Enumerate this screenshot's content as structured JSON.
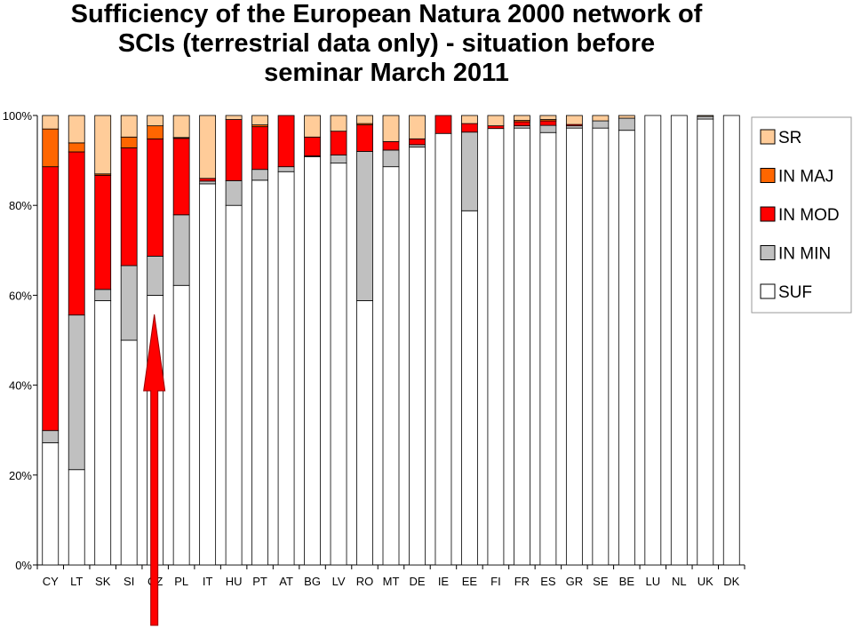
{
  "title_lines": [
    "Sufficiency of the European Natura 2000 network of",
    "SCIs  (terrestrial data only) - situation before",
    "seminar March 2011"
  ],
  "colors": {
    "SUF": "#ffffff",
    "IN MIN": "#c0c0c0",
    "IN MOD": "#ff0000",
    "IN MAJ": "#ff6600",
    "SR": "#ffcc99",
    "arrow": "#ff0000",
    "arrow_stroke": "#990000"
  },
  "chart_data": {
    "type": "bar",
    "stacked": true,
    "percent": true,
    "ylim": [
      0,
      100
    ],
    "yticks": [
      "0%",
      "20%",
      "40%",
      "60%",
      "80%",
      "100%"
    ],
    "ytick_values": [
      0,
      20,
      40,
      60,
      80,
      100
    ],
    "grid": false,
    "legend_position": "right",
    "legend_order": [
      "SR",
      "IN MAJ",
      "IN MOD",
      "IN MIN",
      "SUF"
    ],
    "categories": [
      "CY",
      "LT",
      "SK",
      "SI",
      "CZ",
      "PL",
      "IT",
      "HU",
      "PT",
      "AT",
      "BG",
      "LV",
      "RO",
      "MT",
      "DE",
      "IE",
      "EE",
      "FI",
      "FR",
      "ES",
      "GR",
      "SE",
      "BE",
      "LU",
      "NL",
      "UK",
      "DK"
    ],
    "series": [
      {
        "name": "SUF",
        "values": [
          27.2,
          21.2,
          58.8,
          50.0,
          60.0,
          62.2,
          84.8,
          80.0,
          85.6,
          87.5,
          90.8,
          89.4,
          58.8,
          88.6,
          93.0,
          96.0,
          78.8,
          97.1,
          97.2,
          96.2,
          97.2,
          97.2,
          96.7,
          100.0,
          100.0,
          99.2,
          100.0
        ]
      },
      {
        "name": "IN MIN",
        "values": [
          2.7,
          34.4,
          2.5,
          16.6,
          8.7,
          15.7,
          0.6,
          5.5,
          2.4,
          1.1,
          0.2,
          1.8,
          33.2,
          3.7,
          0.5,
          0.0,
          17.5,
          0.0,
          0.5,
          1.6,
          0.5,
          1.6,
          2.7,
          0.0,
          0.0,
          0.6,
          0.0
        ]
      },
      {
        "name": "IN MOD",
        "values": [
          58.7,
          36.3,
          25.4,
          26.2,
          26.1,
          17.0,
          0.6,
          13.6,
          9.5,
          11.4,
          4.2,
          5.3,
          5.9,
          1.9,
          1.3,
          4.0,
          1.9,
          0.6,
          0.9,
          1.0,
          0.3,
          0.0,
          0.0,
          0.0,
          0.0,
          0.0,
          0.0
        ]
      },
      {
        "name": "IN MAJ",
        "values": [
          8.4,
          2.0,
          0.3,
          2.4,
          2.9,
          0.2,
          0.0,
          0.0,
          0.4,
          0.0,
          0.0,
          0.0,
          0.3,
          0.0,
          0.0,
          0.0,
          0.0,
          0.0,
          0.3,
          0.3,
          0.0,
          0.0,
          0.0,
          0.0,
          0.0,
          0.0,
          0.0
        ]
      },
      {
        "name": "SR",
        "values": [
          3.0,
          6.1,
          13.0,
          4.8,
          2.3,
          4.9,
          14.0,
          0.9,
          2.1,
          0.0,
          4.8,
          3.5,
          1.8,
          5.8,
          5.2,
          0.0,
          1.8,
          2.3,
          1.1,
          0.9,
          2.0,
          1.2,
          0.6,
          0.0,
          0.0,
          0.2,
          0.0
        ]
      }
    ],
    "annotation": {
      "type": "arrow",
      "points_to_category": "CZ"
    }
  }
}
